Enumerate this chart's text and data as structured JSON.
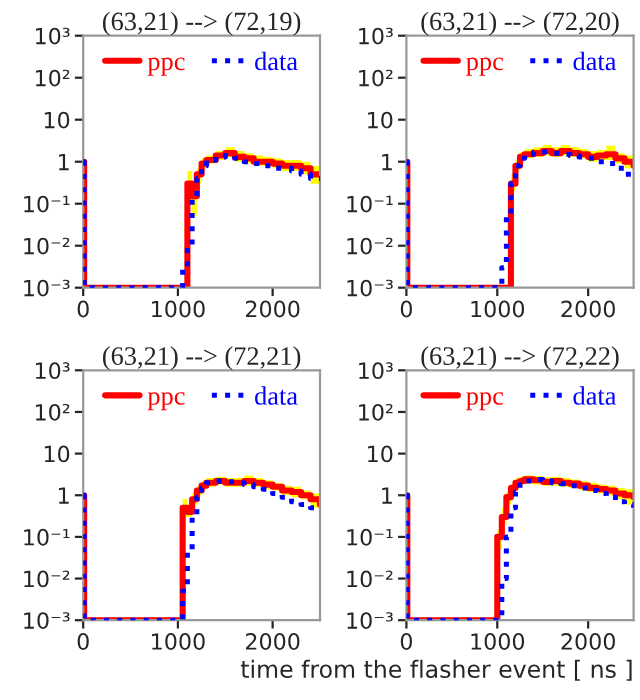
{
  "chart_data": [
    {
      "type": "step",
      "title": "(63,21) --> (72,19)",
      "legend": "top",
      "log": "y",
      "xlim": [
        0,
        2500
      ],
      "xticks": [
        0,
        1000,
        2000
      ],
      "ylim": [
        0.001,
        1000
      ],
      "yticks": [
        {
          "value": 0.001,
          "label": "10⁻³"
        },
        {
          "value": 0.01,
          "label": "10⁻²"
        },
        {
          "value": 0.1,
          "label": "10⁻¹"
        },
        {
          "value": 1,
          "label": "1"
        },
        {
          "value": 10,
          "label": "10"
        },
        {
          "value": 100,
          "label": "10²"
        },
        {
          "value": 1000,
          "label": "10³"
        }
      ],
      "x": [
        0,
        10,
        1000,
        1050,
        1100,
        1150,
        1200,
        1250,
        1300,
        1400,
        1500,
        1600,
        1700,
        1800,
        1900,
        2000,
        2100,
        2200,
        2300,
        2400,
        2500
      ],
      "series": [
        {
          "name": "ppc",
          "color": "#ff0000",
          "line_style": "solid",
          "values": [
            1,
            0.001,
            0.001,
            0.001,
            0.3,
            0.15,
            0.5,
            0.9,
            1.1,
            1.4,
            1.6,
            1.3,
            1.2,
            1.0,
            1.0,
            0.9,
            0.8,
            0.8,
            0.7,
            0.5,
            0.5
          ],
          "lower": [
            null,
            null,
            null,
            null,
            0.1,
            0.05,
            0.3,
            0.7,
            0.9,
            1.1,
            1.3,
            1.0,
            0.9,
            0.8,
            0.8,
            0.7,
            0.6,
            0.6,
            0.5,
            0.3,
            0.3
          ],
          "upper": [
            null,
            null,
            null,
            null,
            0.6,
            0.3,
            0.7,
            1.2,
            1.4,
            1.8,
            2.2,
            1.8,
            1.6,
            1.4,
            1.3,
            1.2,
            1.1,
            1.1,
            1.0,
            0.8,
            0.8
          ]
        },
        {
          "name": "data",
          "color": "#0000ff",
          "line_style": "dotted",
          "values": [
            1,
            0.001,
            0.001,
            0.003,
            0.01,
            0.15,
            0.4,
            0.8,
            1.1,
            1.3,
            1.4,
            1.2,
            1.0,
            0.9,
            0.8,
            0.7,
            0.7,
            0.6,
            0.5,
            0.4,
            0.4
          ]
        }
      ]
    },
    {
      "type": "step",
      "title": "(63,21) --> (72,20)",
      "legend": "top",
      "log": "y",
      "xlim": [
        0,
        2500
      ],
      "xticks": [
        0,
        1000,
        2000
      ],
      "ylim": [
        0.001,
        1000
      ],
      "yticks": [
        {
          "value": 0.001,
          "label": "10⁻³"
        },
        {
          "value": 0.01,
          "label": "10⁻²"
        },
        {
          "value": 0.1,
          "label": "10⁻¹"
        },
        {
          "value": 1,
          "label": "1"
        },
        {
          "value": 10,
          "label": "10"
        },
        {
          "value": 100,
          "label": "10²"
        },
        {
          "value": 1000,
          "label": "10³"
        }
      ],
      "x": [
        0,
        10,
        1000,
        1050,
        1100,
        1150,
        1200,
        1250,
        1300,
        1400,
        1500,
        1600,
        1700,
        1800,
        1900,
        2000,
        2100,
        2200,
        2300,
        2400,
        2500
      ],
      "series": [
        {
          "name": "ppc",
          "color": "#ff0000",
          "line_style": "solid",
          "values": [
            1,
            0.001,
            0.001,
            0.001,
            0.001,
            0.3,
            0.8,
            1.3,
            1.5,
            1.6,
            1.8,
            1.6,
            1.8,
            1.6,
            1.5,
            1.3,
            1.4,
            1.5,
            1.2,
            1.0,
            0.8
          ],
          "lower": [
            null,
            null,
            null,
            null,
            null,
            0.2,
            0.6,
            1.0,
            1.2,
            1.3,
            1.4,
            1.3,
            1.4,
            1.3,
            1.2,
            1.0,
            1.1,
            1.1,
            0.9,
            0.7,
            0.6
          ],
          "upper": [
            null,
            null,
            null,
            null,
            null,
            0.5,
            1.1,
            1.7,
            2.0,
            2.2,
            2.5,
            2.2,
            2.5,
            2.2,
            2.0,
            1.8,
            1.9,
            2.4,
            1.6,
            1.4,
            1.1
          ]
        },
        {
          "name": "data",
          "color": "#0000ff",
          "line_style": "dotted",
          "values": [
            1,
            0.001,
            0.001,
            0.003,
            0.05,
            0.3,
            0.8,
            1.2,
            1.5,
            1.7,
            1.7,
            1.6,
            1.5,
            1.4,
            1.3,
            1.2,
            1.0,
            0.9,
            0.7,
            0.5,
            0.5
          ]
        }
      ]
    },
    {
      "type": "step",
      "title": "(63,21) --> (72,21)",
      "legend": "top",
      "log": "y",
      "xlim": [
        0,
        2500
      ],
      "xticks": [
        0,
        1000,
        2000
      ],
      "ylim": [
        0.001,
        1000
      ],
      "yticks": [
        {
          "value": 0.001,
          "label": "10⁻³"
        },
        {
          "value": 0.01,
          "label": "10⁻²"
        },
        {
          "value": 0.1,
          "label": "10⁻¹"
        },
        {
          "value": 1,
          "label": "1"
        },
        {
          "value": 10,
          "label": "10"
        },
        {
          "value": 100,
          "label": "10²"
        },
        {
          "value": 1000,
          "label": "10³"
        }
      ],
      "x": [
        0,
        10,
        1000,
        1050,
        1100,
        1150,
        1200,
        1250,
        1300,
        1400,
        1500,
        1600,
        1700,
        1800,
        1900,
        2000,
        2100,
        2200,
        2300,
        2400,
        2500
      ],
      "series": [
        {
          "name": "ppc",
          "color": "#ff0000",
          "line_style": "solid",
          "values": [
            1,
            0.001,
            0.001,
            0.5,
            0.4,
            0.8,
            1.3,
            1.7,
            2.0,
            2.2,
            2.0,
            2.0,
            2.2,
            2.0,
            1.8,
            1.6,
            1.3,
            1.2,
            1.0,
            0.8,
            0.6
          ],
          "lower": [
            null,
            null,
            null,
            0.3,
            0.3,
            0.6,
            1.0,
            1.4,
            1.6,
            1.8,
            1.6,
            1.6,
            1.7,
            1.6,
            1.4,
            1.3,
            1.0,
            0.9,
            0.8,
            0.5,
            0.4
          ],
          "upper": [
            null,
            null,
            null,
            0.8,
            0.6,
            1.1,
            1.7,
            2.2,
            2.6,
            2.8,
            2.6,
            2.6,
            3.0,
            2.6,
            2.3,
            2.0,
            1.7,
            1.6,
            1.3,
            1.1,
            0.9
          ]
        },
        {
          "name": "data",
          "color": "#0000ff",
          "line_style": "dotted",
          "values": [
            1,
            0.001,
            0.001,
            0.005,
            0.05,
            0.3,
            0.9,
            1.5,
            2.0,
            2.2,
            2.1,
            2.0,
            1.8,
            1.6,
            1.4,
            1.1,
            0.9,
            0.7,
            0.6,
            0.5,
            0.5
          ]
        }
      ]
    },
    {
      "type": "step",
      "title": "(63,21) --> (72,22)",
      "xlabel": "time from the flasher event [ ns ]",
      "legend": "top",
      "log": "y",
      "xlim": [
        0,
        2500
      ],
      "xticks": [
        0,
        1000,
        2000
      ],
      "ylim": [
        0.001,
        1000
      ],
      "yticks": [
        {
          "value": 0.001,
          "label": "10⁻³"
        },
        {
          "value": 0.01,
          "label": "10⁻²"
        },
        {
          "value": 0.1,
          "label": "10⁻¹"
        },
        {
          "value": 1,
          "label": "1"
        },
        {
          "value": 10,
          "label": "10"
        },
        {
          "value": 100,
          "label": "10²"
        },
        {
          "value": 1000,
          "label": "10³"
        }
      ],
      "x": [
        0,
        10,
        1000,
        1050,
        1100,
        1150,
        1200,
        1250,
        1300,
        1400,
        1500,
        1600,
        1700,
        1800,
        1900,
        2000,
        2100,
        2200,
        2300,
        2400,
        2500
      ],
      "series": [
        {
          "name": "ppc",
          "color": "#ff0000",
          "line_style": "solid",
          "values": [
            1,
            0.001,
            0.1,
            0.3,
            0.9,
            1.5,
            2.0,
            2.2,
            2.4,
            2.3,
            2.1,
            2.2,
            2.0,
            1.9,
            1.7,
            1.5,
            1.4,
            1.3,
            1.1,
            1.0,
            0.9
          ],
          "lower": [
            null,
            null,
            0.05,
            0.2,
            0.6,
            1.1,
            1.6,
            1.8,
            1.9,
            1.8,
            1.7,
            1.7,
            1.6,
            1.5,
            1.3,
            1.2,
            1.1,
            1.0,
            0.8,
            0.6,
            0.6
          ],
          "upper": [
            null,
            null,
            0.15,
            0.5,
            1.2,
            1.9,
            2.6,
            2.8,
            3.0,
            2.9,
            2.7,
            2.8,
            2.6,
            2.4,
            2.2,
            2.0,
            1.8,
            1.7,
            1.5,
            1.4,
            1.2
          ]
        },
        {
          "name": "data",
          "color": "#0000ff",
          "line_style": "dotted",
          "values": [
            1,
            0.001,
            0.001,
            0.01,
            0.1,
            0.5,
            1.2,
            1.8,
            2.2,
            2.4,
            2.2,
            2.0,
            1.9,
            1.7,
            1.5,
            1.3,
            1.1,
            0.9,
            0.7,
            0.6,
            0.5
          ]
        }
      ]
    }
  ]
}
